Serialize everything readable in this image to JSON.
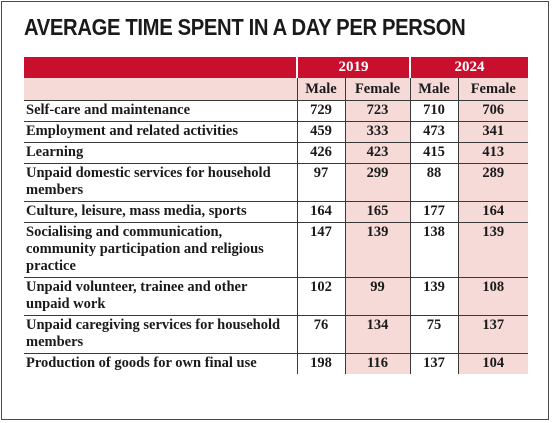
{
  "title": "AVERAGE TIME SPENT IN A DAY PER PERSON",
  "colors": {
    "header_red": "#c8102e",
    "tint_pink": "#f6dad7",
    "text": "#1a1a1a"
  },
  "chart_data": {
    "type": "table",
    "title": "AVERAGE TIME SPENT IN A DAY PER PERSON",
    "years": [
      "2019",
      "2024"
    ],
    "sexes": [
      "Male",
      "Female"
    ],
    "columns": [
      "2019 Male",
      "2019 Female",
      "2024 Male",
      "2024 Female"
    ],
    "rows": [
      {
        "activity": "Self-care and maintenance",
        "values": [
          729,
          723,
          710,
          706
        ]
      },
      {
        "activity": "Employment and related activities",
        "values": [
          459,
          333,
          473,
          341
        ]
      },
      {
        "activity": "Learning",
        "values": [
          426,
          423,
          415,
          413
        ]
      },
      {
        "activity": "Unpaid domestic services for household members",
        "values": [
          97,
          299,
          88,
          289
        ]
      },
      {
        "activity": "Culture, leisure, mass media, sports",
        "values": [
          164,
          165,
          177,
          164
        ]
      },
      {
        "activity": "Socialising and communication, community participation and religious practice",
        "values": [
          147,
          139,
          138,
          139
        ]
      },
      {
        "activity": "Unpaid volunteer, trainee and other unpaid work",
        "values": [
          102,
          99,
          139,
          108
        ]
      },
      {
        "activity": "Unpaid caregiving services for household members",
        "values": [
          76,
          134,
          75,
          137
        ]
      },
      {
        "activity": "Production of goods for own final use",
        "values": [
          198,
          116,
          137,
          104
        ]
      }
    ]
  }
}
